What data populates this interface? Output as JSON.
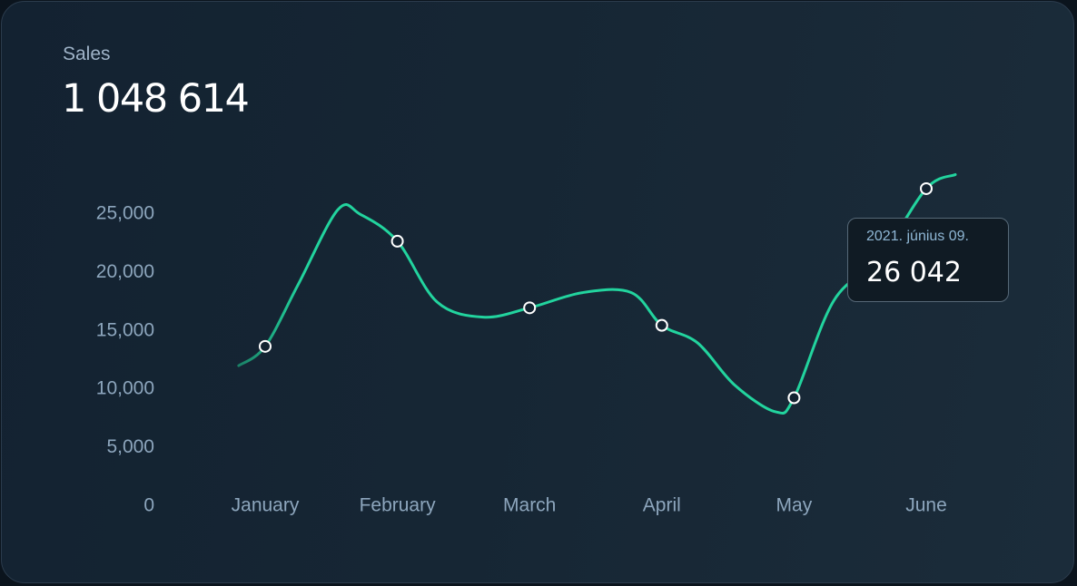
{
  "card": {
    "title": "Sales",
    "total": "1 048 614"
  },
  "tooltip": {
    "date": "2021. június 09.",
    "value": "26 042"
  },
  "colors": {
    "line": "#22d49e",
    "axis_text": "#8da6bd",
    "marker_stroke": "#ffffff"
  },
  "chart_data": {
    "type": "line",
    "categories": [
      "January",
      "February",
      "March",
      "April",
      "May",
      "June"
    ],
    "y_ticks": [
      "0",
      "5,000",
      "10,000",
      "15,000",
      "20,000",
      "25,000"
    ],
    "y_tick_values": [
      0,
      5000,
      10000,
      15000,
      20000,
      25000
    ],
    "ylim": [
      0,
      25000
    ],
    "grid": false,
    "markers": [
      {
        "x": "January",
        "y": 13600
      },
      {
        "x": "February",
        "y": 22600
      },
      {
        "x": "March",
        "y": 16900
      },
      {
        "x": "April",
        "y": 15400
      },
      {
        "x": "May",
        "y": 9200
      },
      {
        "x": "June",
        "y": 27100
      }
    ],
    "curve": [
      {
        "x": -0.2,
        "y": 11950
      },
      {
        "x": 0.0,
        "y": 13600
      },
      {
        "x": 0.25,
        "y": 18900
      },
      {
        "x": 0.55,
        "y": 25300
      },
      {
        "x": 0.72,
        "y": 24900
      },
      {
        "x": 1.0,
        "y": 22600
      },
      {
        "x": 1.3,
        "y": 17400
      },
      {
        "x": 1.65,
        "y": 16100
      },
      {
        "x": 2.0,
        "y": 16900
      },
      {
        "x": 2.4,
        "y": 18200
      },
      {
        "x": 2.77,
        "y": 18200
      },
      {
        "x": 3.0,
        "y": 15400
      },
      {
        "x": 3.27,
        "y": 13900
      },
      {
        "x": 3.55,
        "y": 10300
      },
      {
        "x": 3.86,
        "y": 8000
      },
      {
        "x": 4.0,
        "y": 9200
      },
      {
        "x": 4.3,
        "y": 17500
      },
      {
        "x": 4.65,
        "y": 21200
      },
      {
        "x": 5.0,
        "y": 27100
      },
      {
        "x": 5.22,
        "y": 28300
      }
    ]
  }
}
